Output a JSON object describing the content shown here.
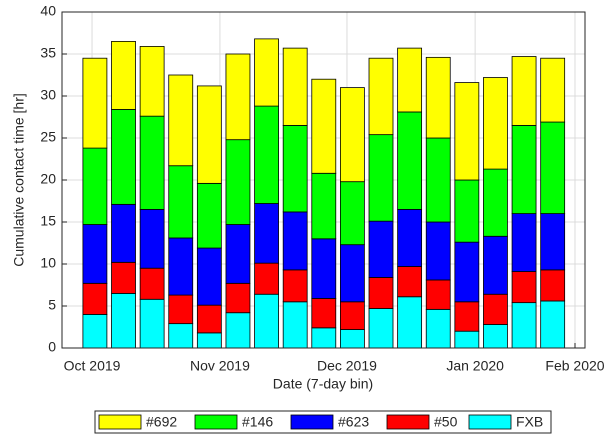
{
  "chart_data": {
    "type": "stacked-bar",
    "xlabel": "Date (7-day bin)",
    "ylabel": "Cumulative contact time [hr]",
    "categories": [
      null,
      null,
      null,
      null,
      null,
      null,
      null,
      null,
      null,
      null,
      null,
      null,
      null,
      null,
      null,
      null,
      null
    ],
    "xlim": [
      -1.15,
      17.13
    ],
    "xticks": [
      {
        "value": -0.1,
        "label": "Oct 2019"
      },
      {
        "value": 4.37,
        "label": "Nov 2019"
      },
      {
        "value": 8.81,
        "label": "Dec 2019"
      },
      {
        "value": 13.29,
        "label": "Jan 2020"
      },
      {
        "value": 16.78,
        "label": "Feb 2020"
      }
    ],
    "ylim": [
      0,
      40
    ],
    "yticks": [
      0,
      5,
      10,
      15,
      20,
      25,
      30,
      35,
      40
    ],
    "grid": true,
    "legend": "bottom",
    "series": [
      {
        "name": "FXB",
        "color": "#00ffff",
        "values": [
          4.0,
          6.5,
          5.8,
          2.9,
          1.8,
          4.2,
          6.4,
          5.5,
          2.4,
          2.2,
          4.7,
          6.1,
          4.6,
          2.0,
          2.8,
          5.4,
          5.6
        ]
      },
      {
        "name": "#50",
        "color": "#ff0000",
        "values": [
          3.7,
          3.7,
          3.7,
          3.4,
          3.3,
          3.5,
          3.7,
          3.8,
          3.5,
          3.3,
          3.7,
          3.6,
          3.5,
          3.5,
          3.6,
          3.7,
          3.7
        ]
      },
      {
        "name": "#623",
        "color": "#0000ff",
        "values": [
          7.0,
          6.9,
          7.0,
          6.8,
          6.8,
          7.0,
          7.1,
          6.9,
          7.1,
          6.8,
          6.7,
          6.8,
          6.9,
          7.1,
          6.9,
          6.9,
          6.7
        ]
      },
      {
        "name": "#146",
        "color": "#00ff00",
        "values": [
          9.1,
          11.3,
          11.1,
          8.6,
          7.7,
          10.1,
          11.6,
          10.3,
          7.8,
          7.5,
          10.3,
          11.6,
          10.0,
          7.4,
          8.0,
          10.5,
          10.9
        ]
      },
      {
        "name": "#692",
        "color": "#ffff00",
        "values": [
          10.7,
          8.1,
          8.3,
          10.8,
          11.6,
          10.2,
          8.0,
          9.2,
          11.2,
          11.2,
          9.1,
          7.6,
          9.6,
          11.6,
          10.9,
          8.2,
          7.6
        ]
      }
    ]
  }
}
